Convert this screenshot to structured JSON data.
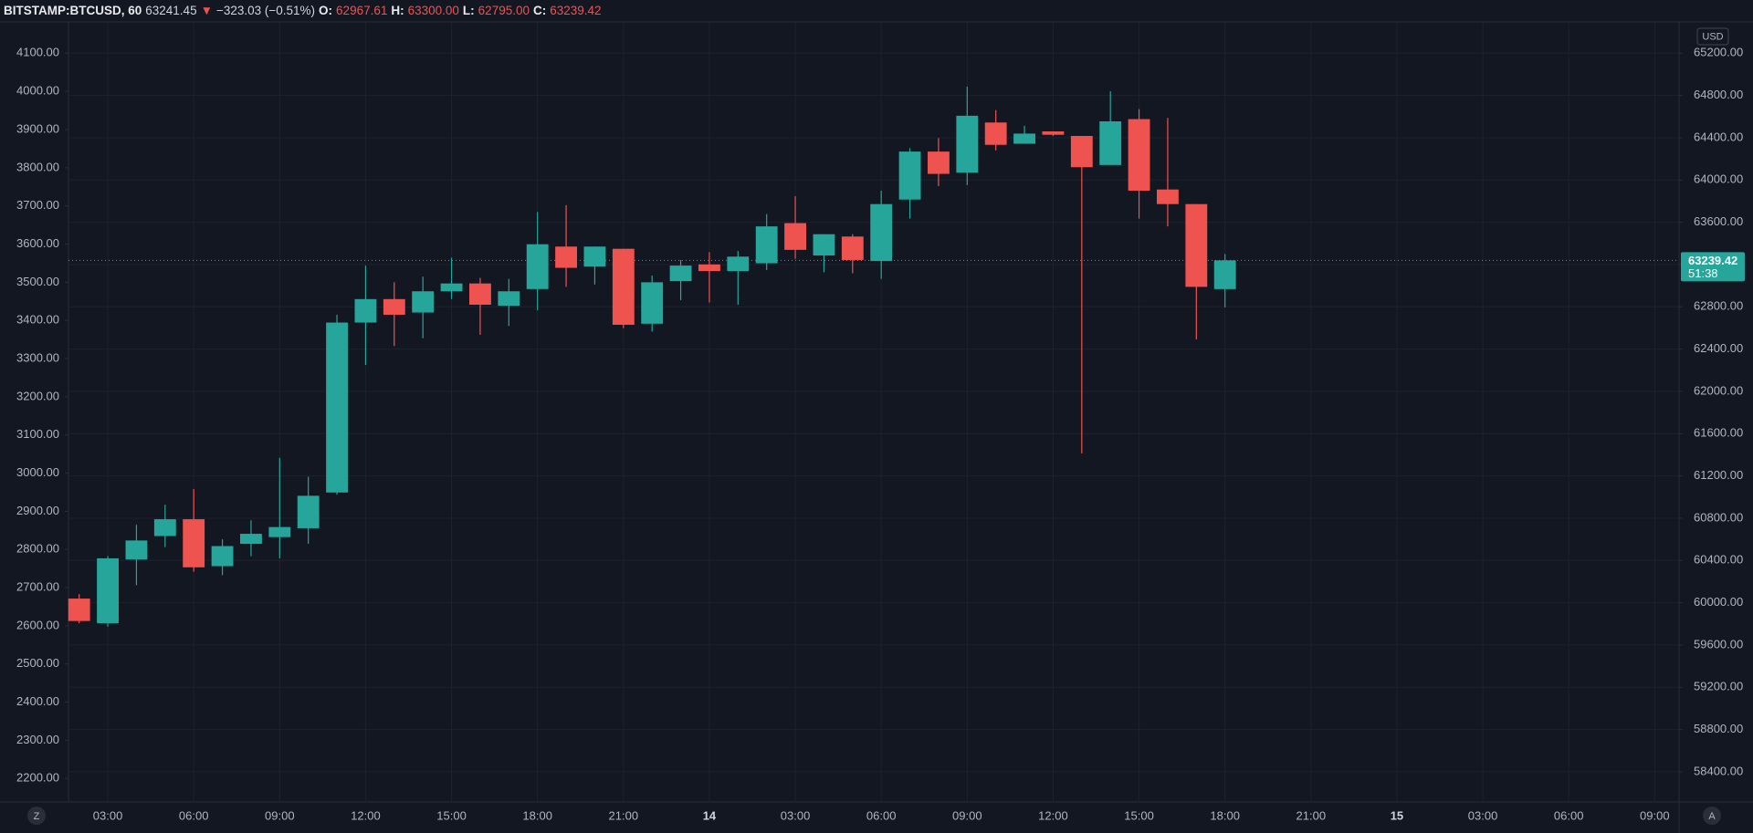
{
  "chart_data": {
    "type": "candlestick",
    "header": {
      "symbol": "BITSTAMP:BTCUSD, 60",
      "price": "63241.45",
      "arrow": "▼",
      "change": "−323.03 (−0.51%)",
      "o_label": "O:",
      "o_value": "62967.61",
      "h_label": "H:",
      "h_value": "63300.00",
      "l_label": "L:",
      "l_value": "62795.00",
      "c_label": "C:",
      "c_value": "63239.42"
    },
    "currency": "USD",
    "countdown": "51:38",
    "last_price": 63239.42,
    "left_button": "Z",
    "right_button": "A",
    "up_color": "#26a69a",
    "down_color": "#ef5350",
    "grid": true,
    "categories": [
      null,
      "03:00",
      null,
      null,
      "06:00",
      null,
      null,
      "09:00",
      null,
      null,
      "12:00",
      null,
      null,
      "15:00",
      null,
      null,
      "18:00",
      null,
      null,
      "21:00",
      null,
      null,
      "14",
      null,
      null,
      "03:00",
      null,
      null,
      "06:00",
      null,
      null,
      "09:00",
      null,
      null,
      "12:00",
      null,
      null,
      "15:00",
      null,
      null,
      "18:00",
      null,
      null,
      "21:00",
      null,
      null,
      "15",
      null,
      null,
      "03:00",
      null,
      null,
      "06:00",
      null,
      null,
      "09:00"
    ],
    "open": [
      60039,
      59806,
      60409,
      60631,
      60790,
      60346,
      60557,
      60621,
      60705,
      61043,
      62651,
      62873,
      62746,
      62947,
      63021,
      62810,
      62968,
      63370,
      63180,
      63349,
      62640,
      63043,
      63201,
      63138,
      63212,
      63592,
      63286,
      63465,
      63233,
      63815,
      64269,
      64069,
      64544,
      64343,
      64460,
      64417,
      64142,
      64576,
      63910,
      63772,
      62967.61,
      null,
      null,
      null,
      null,
      null,
      null,
      null,
      null,
      null,
      null,
      null,
      null,
      null,
      null,
      null
    ],
    "high": [
      60081,
      60441,
      60737,
      60927,
      61075,
      60600,
      60779,
      61371,
      61192,
      62725,
      63190,
      63032,
      63085,
      63265,
      63074,
      63064,
      63698,
      63762,
      63370,
      63349,
      63096,
      63243,
      63317,
      63328,
      63677,
      63846,
      63487,
      63487,
      63899,
      64301,
      64396,
      64883,
      64661,
      64513,
      64460,
      64417,
      64840,
      64671,
      64587,
      63772,
      63300,
      null,
      null,
      null,
      null,
      null,
      null,
      null,
      null,
      null,
      null,
      null,
      null,
      null,
      null,
      null
    ],
    "low": [
      59806,
      59774,
      60166,
      60526,
      60293,
      60261,
      60441,
      60420,
      60557,
      61022,
      62249,
      62429,
      62503,
      62873,
      62535,
      62619,
      62767,
      62989,
      63011,
      62598,
      62566,
      62863,
      62841,
      62820,
      63148,
      63254,
      63127,
      63117,
      63064,
      63635,
      63942,
      63952,
      64280,
      64343,
      64417,
      61414,
      64142,
      63635,
      63561,
      62492,
      62795,
      null,
      null,
      null,
      null,
      null,
      null,
      null,
      null,
      null,
      null,
      null,
      null,
      null,
      null,
      null
    ],
    "close": [
      59827,
      60420,
      60589,
      60790,
      60335,
      60536,
      60652,
      60716,
      61012,
      62651,
      62873,
      62725,
      62947,
      63021,
      62820,
      62947,
      63392,
      63169,
      63370,
      62630,
      63032,
      63190,
      63138,
      63275,
      63561,
      63339,
      63487,
      63243,
      63772,
      64269,
      64058,
      64608,
      64333,
      64439,
      64428,
      64121,
      64555,
      63899,
      63772,
      62989,
      63239.42,
      null,
      null,
      null,
      null,
      null,
      null,
      null,
      null,
      null,
      null,
      null,
      null,
      null,
      null,
      null
    ],
    "ylim": [
      58114.5,
      65496
    ],
    "yticks": [
      {
        "value": 58400,
        "label": "58400.00"
      },
      {
        "value": 58800,
        "label": "58800.00"
      },
      {
        "value": 59200,
        "label": "59200.00"
      },
      {
        "value": 59600,
        "label": "59600.00"
      },
      {
        "value": 60000,
        "label": "60000.00"
      },
      {
        "value": 60400,
        "label": "60400.00"
      },
      {
        "value": 60800,
        "label": "60800.00"
      },
      {
        "value": 61200,
        "label": "61200.00"
      },
      {
        "value": 61600,
        "label": "61600.00"
      },
      {
        "value": 62000,
        "label": "62000.00"
      },
      {
        "value": 62400,
        "label": "62400.00"
      },
      {
        "value": 62800,
        "label": "62800.00"
      },
      {
        "value": 63200,
        "label": "63200.00"
      },
      {
        "value": 63600,
        "label": "63600.00"
      },
      {
        "value": 64000,
        "label": "64000.00"
      },
      {
        "value": 64400,
        "label": "64400.00"
      },
      {
        "value": 64800,
        "label": "64800.00"
      },
      {
        "value": 65200,
        "label": "65200.00"
      }
    ],
    "y2lim": [
      2138.5,
      4182
    ],
    "y2ticks": [
      {
        "value": 2200,
        "label": "2200.00"
      },
      {
        "value": 2300,
        "label": "2300.00"
      },
      {
        "value": 2400,
        "label": "2400.00"
      },
      {
        "value": 2500,
        "label": "2500.00"
      },
      {
        "value": 2600,
        "label": "2600.00"
      },
      {
        "value": 2700,
        "label": "2700.00"
      },
      {
        "value": 2800,
        "label": "2800.00"
      },
      {
        "value": 2900,
        "label": "2900.00"
      },
      {
        "value": 3000,
        "label": "3000.00"
      },
      {
        "value": 3100,
        "label": "3100.00"
      },
      {
        "value": 3200,
        "label": "3200.00"
      },
      {
        "value": 3300,
        "label": "3300.00"
      },
      {
        "value": 3400,
        "label": "3400.00"
      },
      {
        "value": 3500,
        "label": "3500.00"
      },
      {
        "value": 3600,
        "label": "3600.00"
      },
      {
        "value": 3700,
        "label": "3700.00"
      },
      {
        "value": 3800,
        "label": "3800.00"
      },
      {
        "value": 3900,
        "label": "3900.00"
      },
      {
        "value": 4000,
        "label": "4000.00"
      },
      {
        "value": 4100,
        "label": "4100.00"
      }
    ]
  }
}
